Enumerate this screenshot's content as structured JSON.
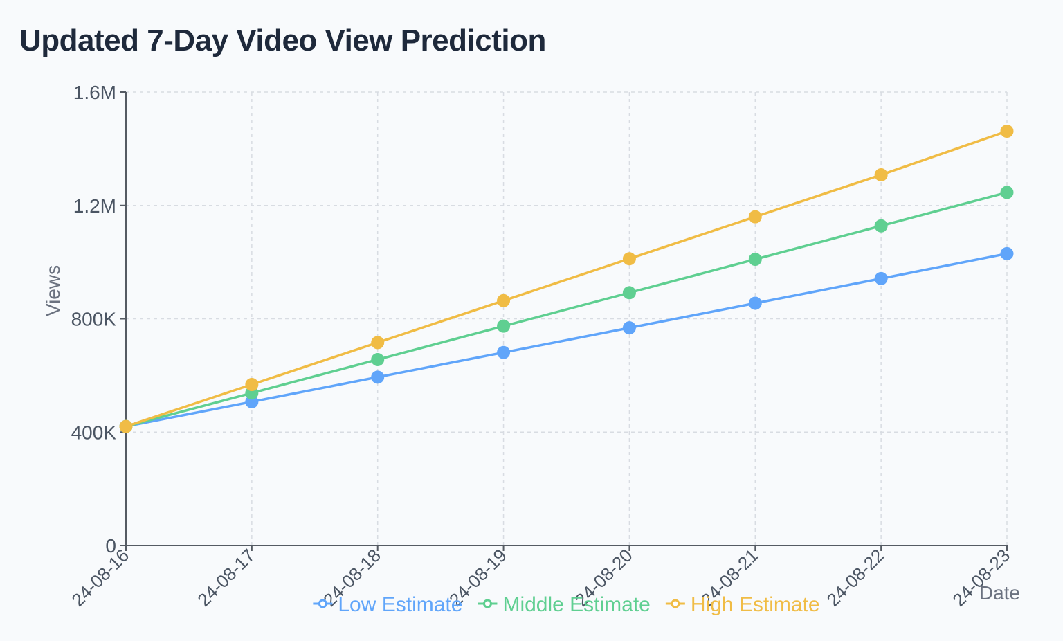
{
  "title": "Updated 7-Day Video View Prediction",
  "chart_data": {
    "type": "line",
    "title": "Updated 7-Day Video View Prediction",
    "xlabel": "Date",
    "ylabel": "Views",
    "x": [
      "2024-08-16",
      "2024-08-17",
      "2024-08-18",
      "2024-08-19",
      "2024-08-20",
      "2024-08-21",
      "2024-08-22",
      "2024-08-23"
    ],
    "x_tick_labels": [
      "24-08-16",
      "24-08-17",
      "24-08-18",
      "24-08-19",
      "24-08-20",
      "24-08-21",
      "24-08-22",
      "24-08-23"
    ],
    "ylim": [
      0,
      1600000
    ],
    "y_ticks": [
      0,
      400000,
      800000,
      1200000,
      1600000
    ],
    "y_tick_labels": [
      "0",
      "400K",
      "800K",
      "1.2M",
      "1.6M"
    ],
    "grid": true,
    "legend_position": "bottom",
    "series": [
      {
        "name": "Low Estimate",
        "color": "#60a5fa",
        "values": [
          420000,
          507000,
          594000,
          681000,
          768000,
          855000,
          942000,
          1030000
        ]
      },
      {
        "name": "Middle Estimate",
        "color": "#5fcf91",
        "values": [
          420000,
          538000,
          656000,
          774000,
          892000,
          1010000,
          1128000,
          1246000
        ]
      },
      {
        "name": "High Estimate",
        "color": "#f0bc45",
        "values": [
          420000,
          568000,
          716000,
          864000,
          1012000,
          1160000,
          1308000,
          1462000
        ]
      }
    ]
  }
}
